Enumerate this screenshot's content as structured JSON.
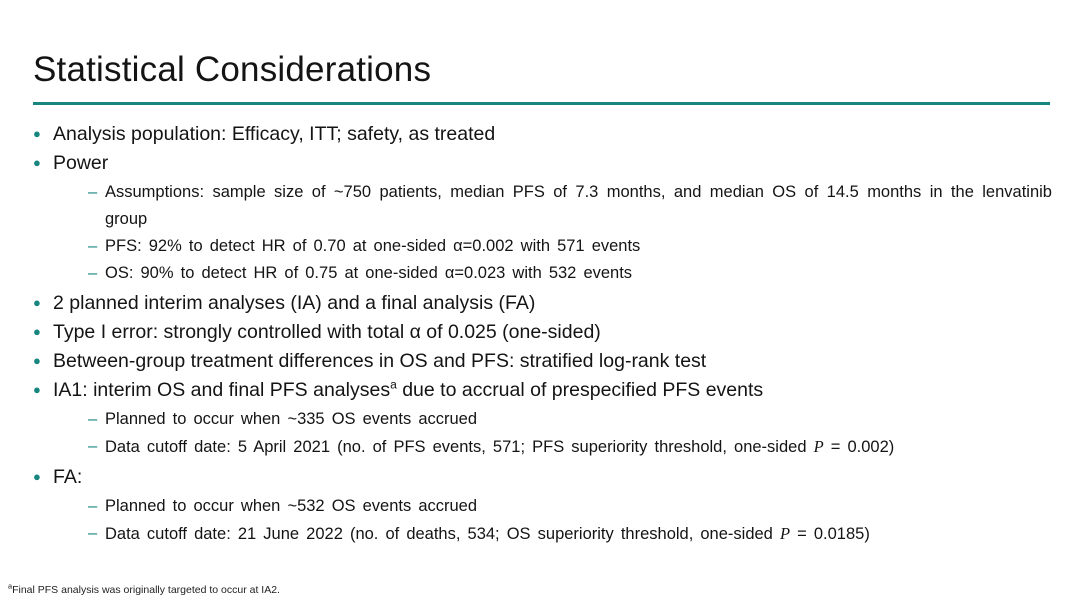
{
  "slide": {
    "title": "Statistical Considerations",
    "accent_color": "#17867F",
    "text_color": "#141414",
    "background_color": "#FFFFFF"
  },
  "bullets": [
    {
      "level": 1,
      "segments": [
        {
          "t": "Analysis population: Efficacy, ITT; safety, as treated"
        }
      ]
    },
    {
      "level": 1,
      "segments": [
        {
          "t": "Power"
        }
      ]
    },
    {
      "level": 2,
      "segments": [
        {
          "t": "Assumptions: sample size of ~750 patients, median PFS of 7.3 months, and median OS of 14.5 months in the lenvatinib group"
        }
      ]
    },
    {
      "level": 2,
      "segments": [
        {
          "t": "PFS: 92% to detect HR of 0.70 at one-sided α=0.002 with 571 events"
        }
      ]
    },
    {
      "level": 2,
      "segments": [
        {
          "t": "OS: 90% to detect HR of 0.75 at one-sided α=0.023 with 532 events"
        }
      ]
    },
    {
      "level": 1,
      "segments": [
        {
          "t": "2 planned interim analyses (IA) and a final analysis (FA)"
        }
      ]
    },
    {
      "level": 1,
      "segments": [
        {
          "t": "Type I error: strongly controlled with total α of 0.025 (one-sided)"
        }
      ]
    },
    {
      "level": 1,
      "segments": [
        {
          "t": "Between-group treatment differences in OS and PFS: stratified log-rank test"
        }
      ]
    },
    {
      "level": 1,
      "segments": [
        {
          "t": "IA1: interim OS and final PFS analyses"
        },
        {
          "t": "a",
          "sup": true
        },
        {
          "t": " due to accrual of prespecified PFS events"
        }
      ]
    },
    {
      "level": 2,
      "segments": [
        {
          "t": "Planned to occur when ~335 OS events accrued"
        }
      ]
    },
    {
      "level": 2,
      "segments": [
        {
          "t": "Data cutoff date: 5 April 2021 (no. of PFS events, 571; PFS superiority threshold, one-sided "
        },
        {
          "t": "P",
          "italic": true
        },
        {
          "t": " = 0.002)"
        }
      ]
    },
    {
      "level": 1,
      "segments": [
        {
          "t": "FA:"
        }
      ]
    },
    {
      "level": 2,
      "segments": [
        {
          "t": "Planned to occur when ~532 OS events accrued"
        }
      ]
    },
    {
      "level": 2,
      "segments": [
        {
          "t": "Data cutoff date: 21 June 2022 (no. of deaths, 534; OS superiority threshold, one-sided "
        },
        {
          "t": "P",
          "italic": true
        },
        {
          "t": " = 0.0185)"
        }
      ]
    }
  ],
  "footnote": {
    "segments": [
      {
        "t": "a",
        "sup": true
      },
      {
        "t": "Final PFS analysis was originally targeted to occur at IA2."
      }
    ]
  }
}
